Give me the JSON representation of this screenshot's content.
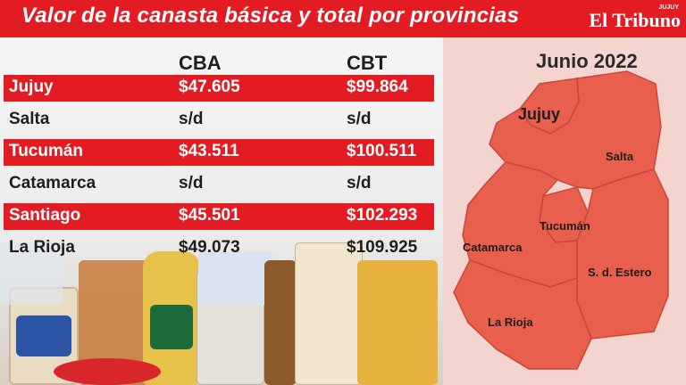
{
  "header": {
    "title": "Valor de la canasta básica y total  por provincias",
    "logo_small": "JUJUY",
    "logo_main": "El Tribuno"
  },
  "table": {
    "columns": [
      "CBA",
      "CBT"
    ],
    "rows": [
      {
        "province": "Jujuy",
        "cba": "$47.605",
        "cbt": "$99.864",
        "highlight": true
      },
      {
        "province": "Salta",
        "cba": "s/d",
        "cbt": "s/d",
        "highlight": false
      },
      {
        "province": "Tucumán",
        "cba": "$43.511",
        "cbt": "$100.511",
        "highlight": true
      },
      {
        "province": "Catamarca",
        "cba": "s/d",
        "cbt": "s/d",
        "highlight": false
      },
      {
        "province": "Santiago",
        "cba": "$45.501",
        "cbt": "$102.293",
        "highlight": true
      },
      {
        "province": "La Rioja",
        "cba": "$49.073",
        "cbt": "$109.925",
        "highlight": false
      }
    ]
  },
  "map": {
    "month": "Junio 2022",
    "labels": {
      "jujuy": "Jujuy",
      "salta": "Salta",
      "tucuman": "Tucumán",
      "catamarca": "Catamarca",
      "estero": "S. d. Estero",
      "rioja": "La Rioja"
    }
  },
  "colors": {
    "accent": "#e31b23",
    "map_fill": "#e8604d",
    "map_stroke": "#c9463a",
    "map_bg": "#f3d4cf"
  }
}
